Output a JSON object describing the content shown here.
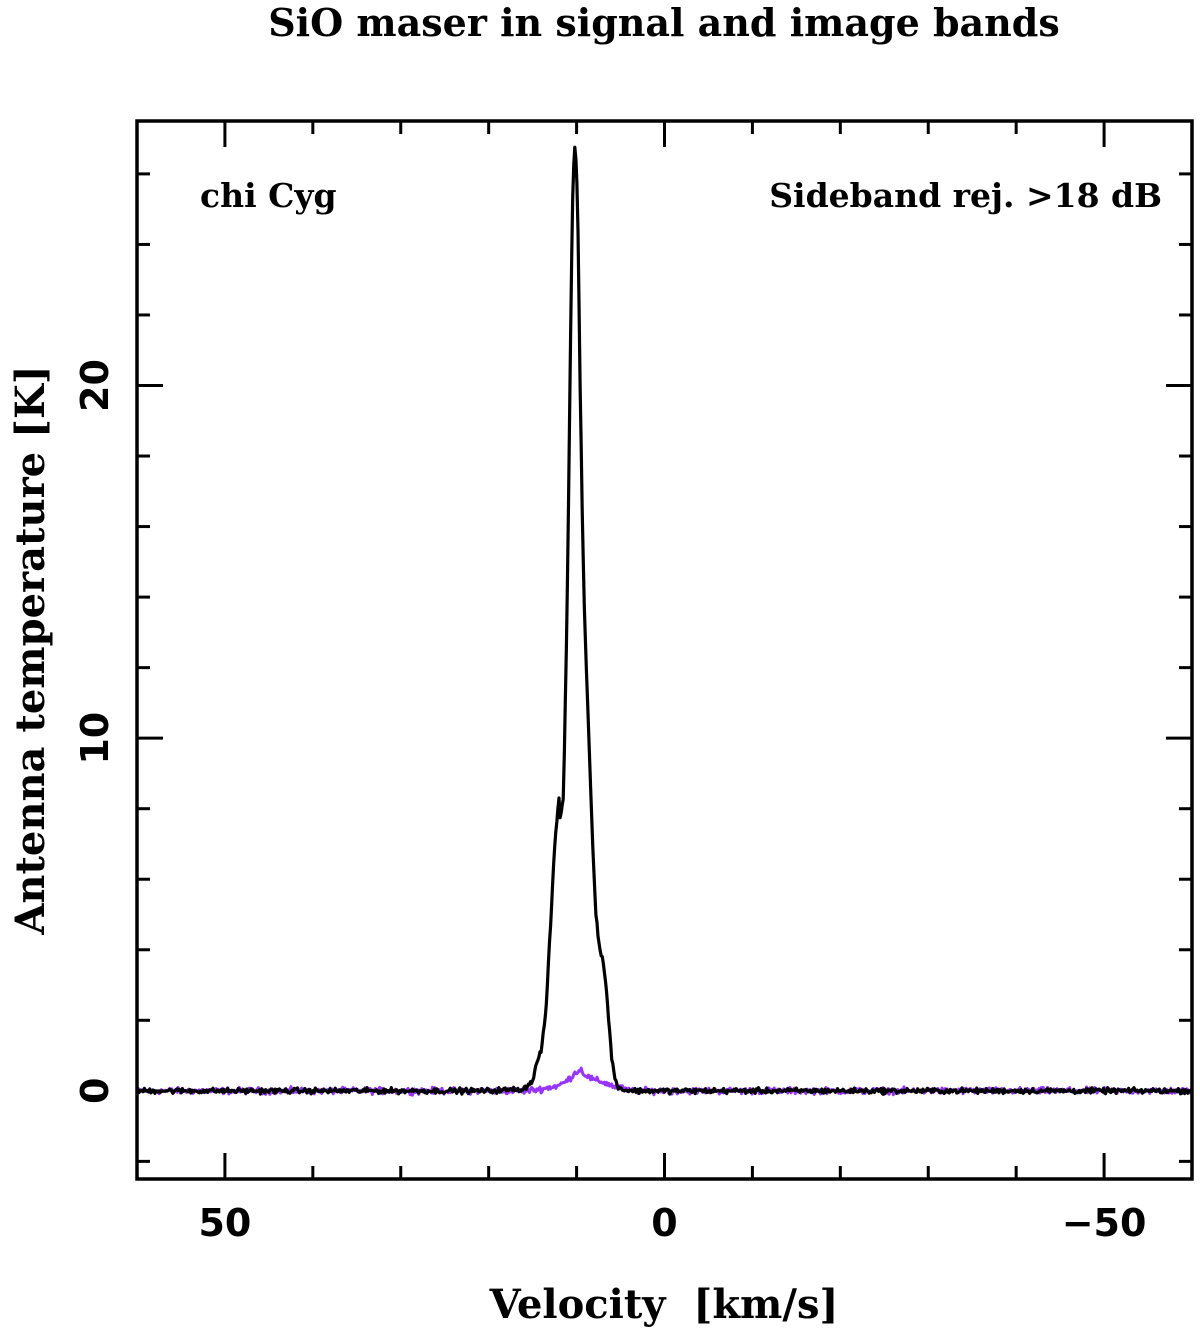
{
  "chart_data": {
    "type": "line",
    "title": "SiO maser in signal and image bands",
    "xlabel": "Velocity  [km/s]",
    "ylabel": "Antenna temperature [K]",
    "xlim": [
      60,
      -60
    ],
    "ylim": [
      -2.5,
      27.5
    ],
    "x_ticks": [
      50,
      0,
      -50
    ],
    "x_tick_labels": [
      "50",
      "0",
      "−50"
    ],
    "y_ticks": [
      0,
      10,
      20
    ],
    "y_tick_labels": [
      "0",
      "10",
      "20"
    ],
    "grid": false,
    "legend": "none",
    "annotations": [
      {
        "text": "chi Cyg",
        "position": "top-left"
      },
      {
        "text": "Sideband rej. >18 dB",
        "position": "top-right"
      }
    ],
    "series": [
      {
        "color": "#000000",
        "x": [
          66,
          20,
          16,
          15,
          14.5,
          14,
          13.5,
          13,
          12.6,
          12.2,
          12,
          11.9,
          11.5,
          11.2,
          11,
          10.8,
          10.6,
          10.4,
          10.2,
          10,
          9.8,
          9.6,
          9.4,
          9.2,
          9,
          8.6,
          8.2,
          7.8,
          7.4,
          7.2,
          7,
          6.8,
          6.6,
          6.4,
          6.2,
          6,
          5.6,
          5.2,
          4.8,
          4.5,
          3,
          -66
        ],
        "y": [
          0,
          0,
          0.05,
          0.3,
          0.8,
          1.2,
          2.2,
          4.5,
          6.5,
          7.8,
          8.3,
          7.7,
          8.3,
          12,
          15,
          19,
          23,
          26,
          26.7,
          26.2,
          24,
          20,
          17,
          14.5,
          12.8,
          10,
          7.2,
          5,
          4.1,
          3.85,
          3.7,
          3.3,
          2.8,
          2.2,
          1.6,
          0.9,
          0.3,
          0.1,
          0.05,
          0.02,
          0,
          0
        ]
      },
      {
        "color": "#9933ff",
        "x": [
          66,
          20,
          16,
          14,
          12,
          11,
          10,
          9.5,
          9,
          8,
          7,
          6,
          5,
          4,
          -66
        ],
        "y": [
          0,
          0,
          0,
          0.05,
          0.15,
          0.3,
          0.55,
          0.6,
          0.45,
          0.3,
          0.25,
          0.15,
          0.08,
          0,
          0
        ]
      }
    ]
  }
}
